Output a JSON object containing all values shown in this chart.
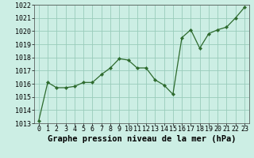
{
  "x": [
    0,
    1,
    2,
    3,
    4,
    5,
    6,
    7,
    8,
    9,
    10,
    11,
    12,
    13,
    14,
    15,
    16,
    17,
    18,
    19,
    20,
    21,
    22,
    23
  ],
  "y": [
    1013.2,
    1016.1,
    1015.7,
    1015.7,
    1015.8,
    1016.1,
    1016.1,
    1016.7,
    1017.2,
    1017.9,
    1017.8,
    1017.2,
    1017.2,
    1016.3,
    1015.9,
    1015.2,
    1019.5,
    1020.1,
    1018.7,
    1019.8,
    1020.1,
    1020.3,
    1021.0,
    1021.8
  ],
  "xlabel": "Graphe pression niveau de la mer (hPa)",
  "ylim": [
    1013,
    1022
  ],
  "xlim": [
    -0.5,
    23.5
  ],
  "yticks": [
    1013,
    1014,
    1015,
    1016,
    1017,
    1018,
    1019,
    1020,
    1021,
    1022
  ],
  "xticks": [
    0,
    1,
    2,
    3,
    4,
    5,
    6,
    7,
    8,
    9,
    10,
    11,
    12,
    13,
    14,
    15,
    16,
    17,
    18,
    19,
    20,
    21,
    22,
    23
  ],
  "line_color": "#2d6a2d",
  "marker_color": "#2d6a2d",
  "bg_color": "#cceee4",
  "grid_color": "#99ccbb",
  "xlabel_fontsize": 7.5,
  "tick_fontsize": 6.0
}
